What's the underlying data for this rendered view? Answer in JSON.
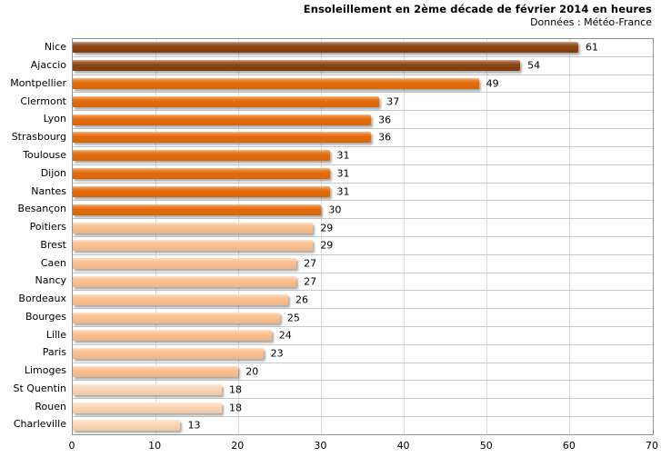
{
  "chart": {
    "title": "Ensoleillement  en 2ème décade  de février 2014 en heures",
    "subtitle": "Données  : Météo-France"
  },
  "chart_data": {
    "type": "bar",
    "orientation": "horizontal",
    "title": "Ensoleillement en 2ème décade de février 2014 en heures",
    "subtitle": "Données : Météo-France",
    "categories": [
      "Nice",
      "Ajaccio",
      "Montpellier",
      "Clermont",
      "Lyon",
      "Strasbourg",
      "Toulouse",
      "Dijon",
      "Nantes",
      "Besançon",
      "Poitiers",
      "Brest",
      "Caen",
      "Nancy",
      "Bordeaux",
      "Bourges",
      "Lille",
      "Paris",
      "Limoges",
      "St Quentin",
      "Rouen",
      "Charleville"
    ],
    "values": [
      61,
      54,
      49,
      37,
      36,
      36,
      31,
      31,
      31,
      30,
      29,
      29,
      27,
      27,
      26,
      25,
      24,
      23,
      20,
      18,
      18,
      13
    ],
    "value_labels_shown": true,
    "xlim": [
      0,
      70
    ],
    "x_ticks": [
      0,
      10,
      20,
      30,
      40,
      50,
      60,
      70
    ],
    "grid": "vertical gridlines every 10, horizontal row separators",
    "legend": "none",
    "palette_tiers": [
      {
        "min_value": 50,
        "color": "#8B4211"
      },
      {
        "min_value": 30,
        "color": "#E36C0A"
      },
      {
        "min_value": 20,
        "color": "#FAC090"
      },
      {
        "min_value": 0,
        "color": "#FCD5B4"
      }
    ],
    "gridline_color": "#D9D9D9",
    "row_separator_color": "#C9C9C9",
    "plot_border_color": "#919191",
    "background_color": "#FFFFFF",
    "text_color": "#000000"
  }
}
